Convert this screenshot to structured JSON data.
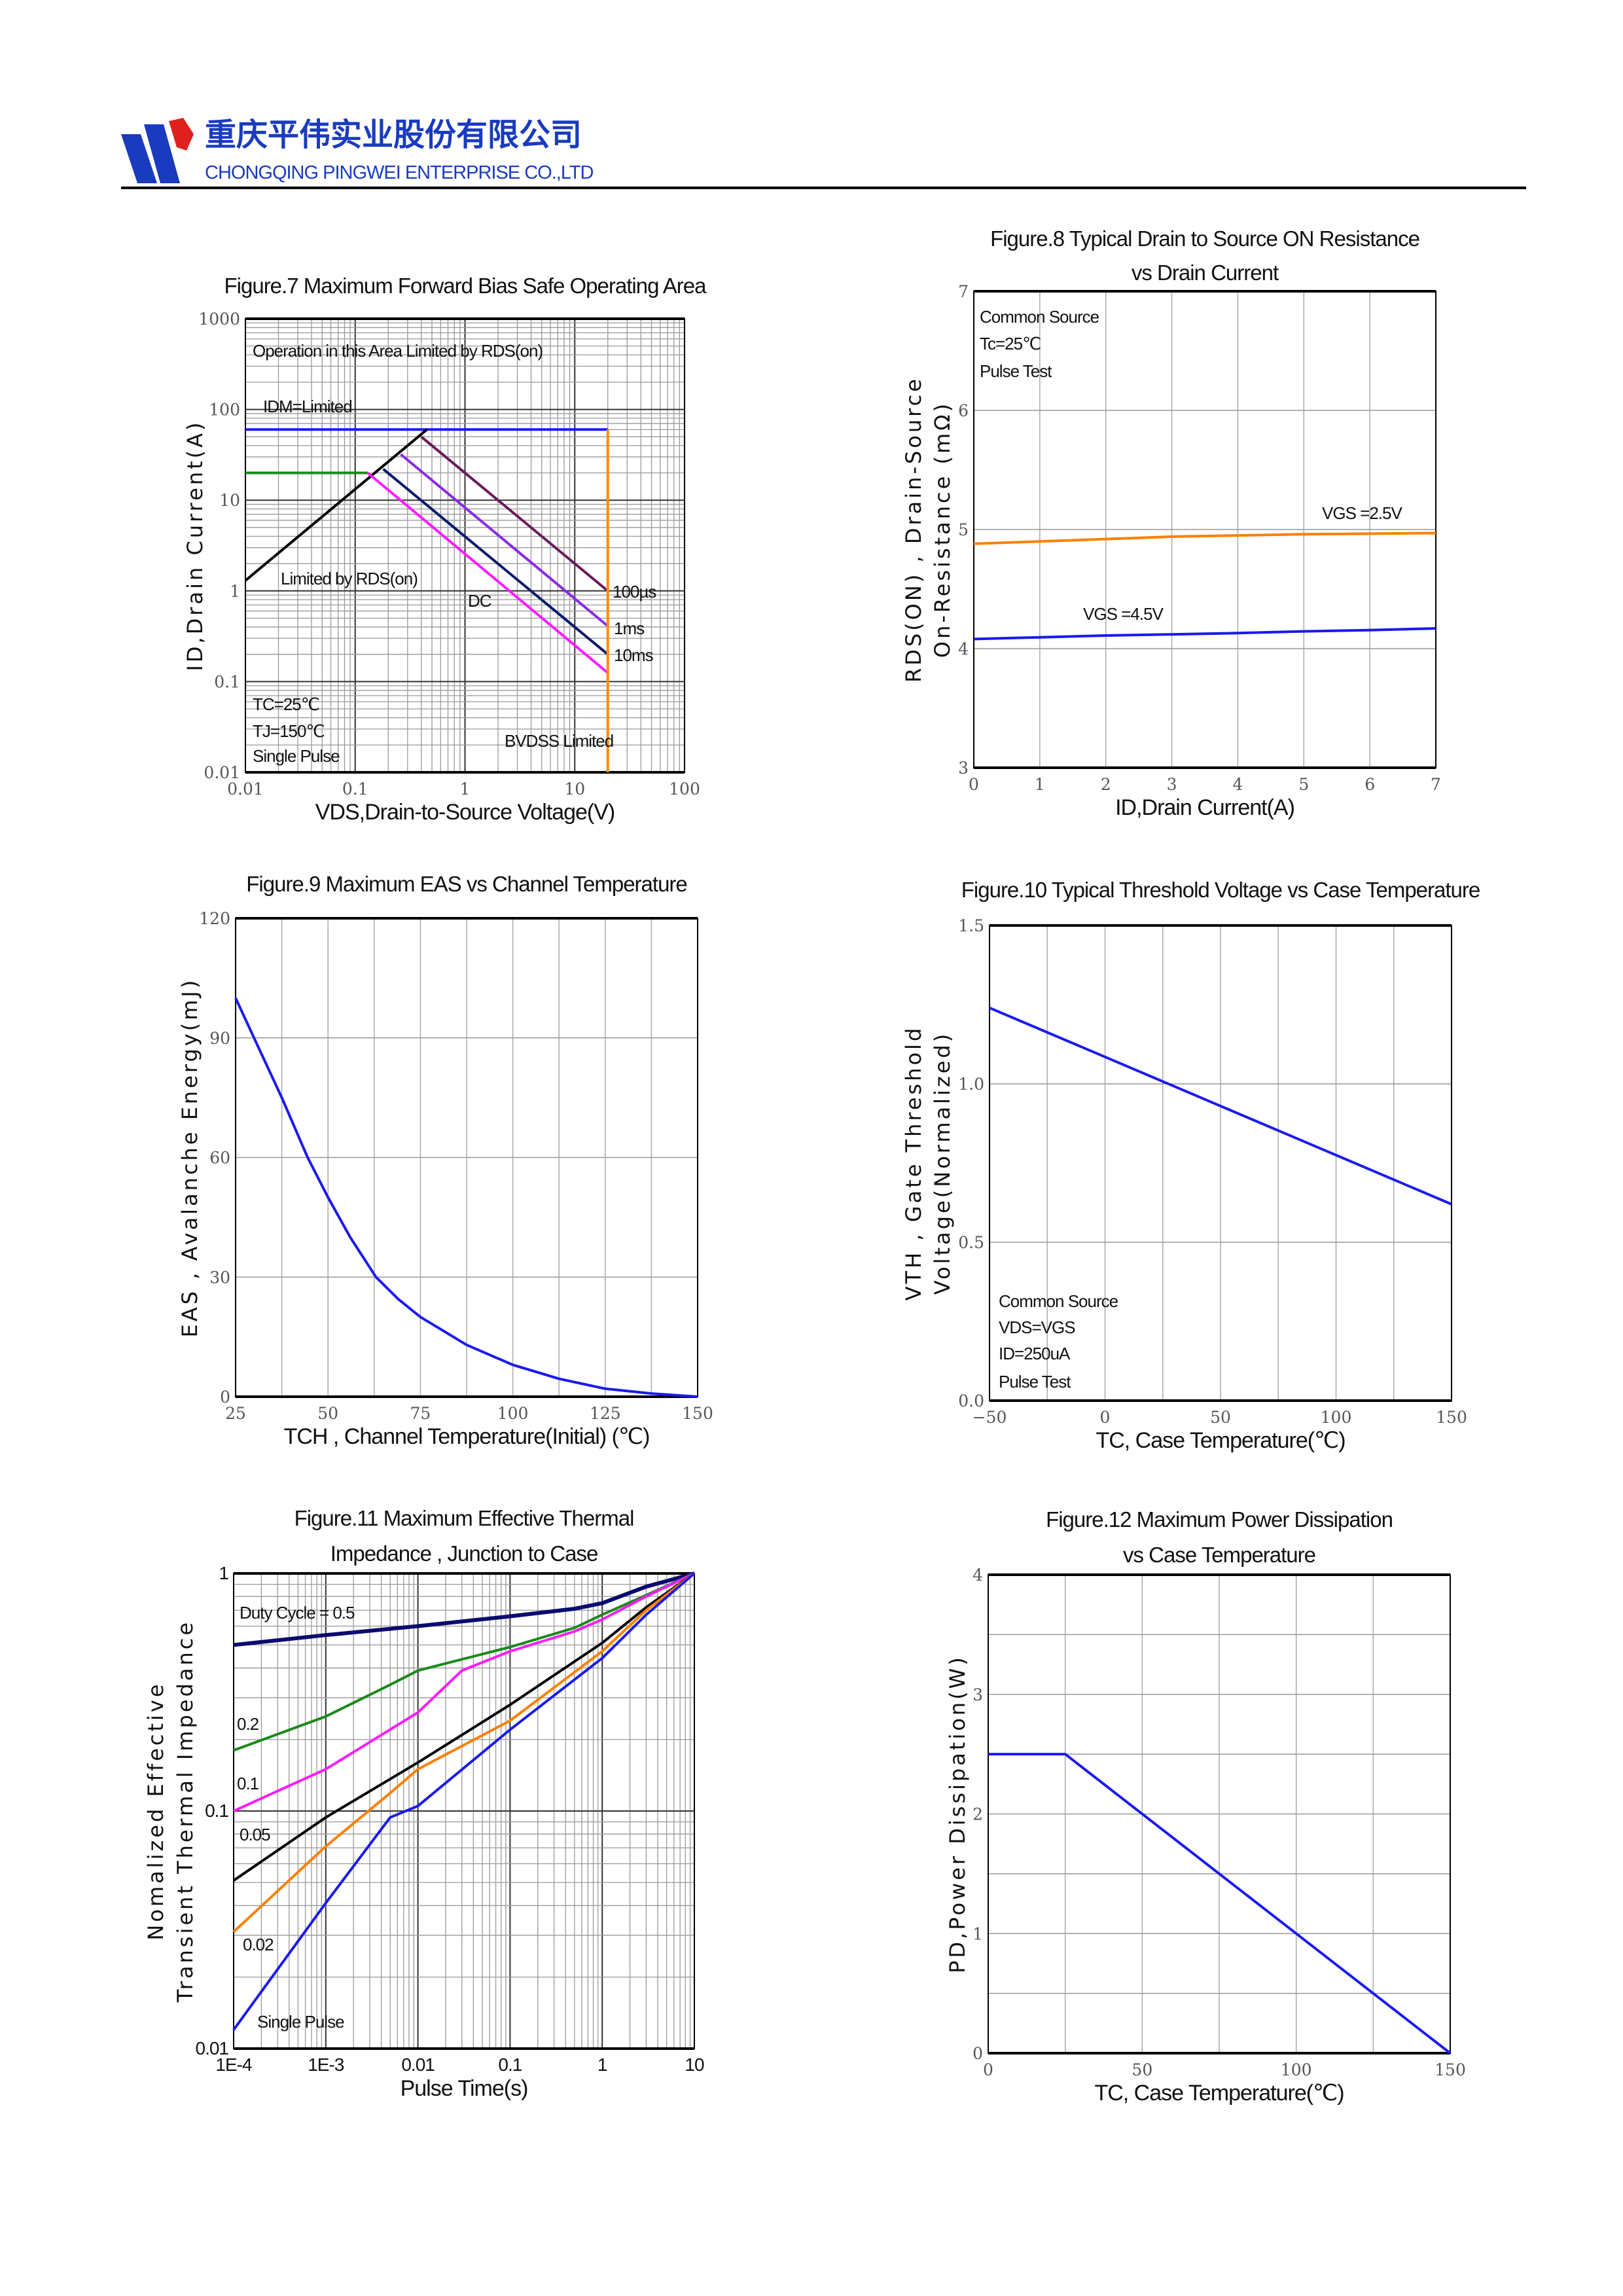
{
  "header": {
    "company_cn": "重庆平伟实业股份有限公司",
    "company_en": "CHONGQING PINGWEI ENTERPRISE CO.,LTD",
    "brand_color": "#1a3bbf",
    "logo_accent": "#e0201c"
  },
  "chart_data": [
    {
      "type": "line",
      "title": [
        "Figure.7 Maximum Forward Bias Safe Operating Area"
      ],
      "xlabel": "VDS,Drain-to-Source Voltage(V)",
      "ylabel": [
        "ID,Drain Current(A)"
      ],
      "xscale": "log",
      "yscale": "log",
      "xlim": [
        0.01,
        100
      ],
      "ylim": [
        0.01,
        1000
      ],
      "xticks": [
        0.01,
        0.1,
        1,
        10,
        100
      ],
      "xticklabels": [
        "0.01",
        "0.1",
        "1",
        "10",
        "100"
      ],
      "yticks": [
        0.01,
        0.1,
        1,
        10,
        100,
        1000
      ],
      "yticklabels": [
        "0.01",
        "0.1",
        "1",
        "10",
        "100",
        "1000"
      ],
      "grid": true,
      "series": [
        {
          "color": "#1a1aff",
          "x": [
            0.01,
            20
          ],
          "y": [
            60,
            60
          ]
        },
        {
          "color": "#1a8a1a",
          "x": [
            0.01,
            0.13
          ],
          "y": [
            20,
            20
          ]
        },
        {
          "color": "#000000",
          "x": [
            0.01,
            0.45
          ],
          "y": [
            1.3,
            60
          ]
        },
        {
          "color": "#6a1a5a",
          "x": [
            0.4,
            20
          ],
          "y": [
            50,
            1
          ]
        },
        {
          "color": "#8a2be2",
          "x": [
            0.26,
            20
          ],
          "y": [
            32,
            0.41
          ]
        },
        {
          "color": "#0a1a6a",
          "x": [
            0.18,
            20
          ],
          "y": [
            22,
            0.2
          ]
        },
        {
          "color": "#ff1aff",
          "x": [
            0.13,
            20
          ],
          "y": [
            20,
            0.125
          ]
        },
        {
          "color": "#ff8c00",
          "x": [
            20,
            20
          ],
          "y": [
            0.01,
            60
          ]
        }
      ],
      "annotations": [
        "Operation in this Area Limited by RDS(on)",
        "IDM=Limited",
        "Limited by RDS(on)",
        "DC",
        "100µs",
        "1ms",
        "10ms",
        "TC=25℃",
        "TJ=150℃",
        "Single Pulse",
        "BVDSS Limited"
      ]
    },
    {
      "type": "line",
      "title": [
        "Figure.8 Typical Drain to Source ON Resistance",
        "vs Drain Current"
      ],
      "xlabel": "ID,Drain Current(A)",
      "ylabel": [
        "RDS(ON) , Drain-Source",
        "On-Resistance (mΩ)"
      ],
      "xscale": "linear",
      "yscale": "linear",
      "xlim": [
        0,
        7
      ],
      "ylim": [
        3,
        7
      ],
      "xticks": [
        0,
        1,
        2,
        3,
        4,
        5,
        6,
        7
      ],
      "xticklabels": [
        "0",
        "1",
        "2",
        "3",
        "4",
        "5",
        "6",
        "7"
      ],
      "yticks": [
        3,
        4,
        5,
        6,
        7
      ],
      "yticklabels": [
        "3",
        "4",
        "5",
        "6",
        "7"
      ],
      "xgrid": [
        1,
        2,
        3,
        4,
        5,
        6
      ],
      "ygrid": [
        4,
        5,
        6
      ],
      "series": [
        {
          "color": "#ff8000",
          "x": [
            0,
            1,
            2,
            3,
            4,
            5,
            6,
            7
          ],
          "y": [
            4.88,
            4.9,
            4.92,
            4.94,
            4.95,
            4.96,
            4.965,
            4.97
          ]
        },
        {
          "color": "#1a1aee",
          "x": [
            0,
            1,
            2,
            3,
            4,
            5,
            6,
            7
          ],
          "y": [
            4.08,
            4.095,
            4.11,
            4.12,
            4.13,
            4.145,
            4.155,
            4.17
          ]
        }
      ],
      "annotations": [
        "Common Source",
        "Tc=25℃",
        "Pulse Test",
        "VGS =2.5V",
        "VGS =4.5V"
      ]
    },
    {
      "type": "line",
      "title": [
        "Figure.9 Maximum EAS vs Channel Temperature"
      ],
      "xlabel": "TCH , Channel Temperature(Initial) (℃)",
      "ylabel": [
        "EAS , Avalanche Energy(mJ)"
      ],
      "xscale": "linear",
      "yscale": "linear",
      "xlim": [
        25,
        150
      ],
      "ylim": [
        0,
        120
      ],
      "xticks": [
        25,
        50,
        75,
        100,
        125,
        150
      ],
      "xticklabels": [
        "25",
        "50",
        "75",
        "100",
        "125",
        "150"
      ],
      "yticks": [
        0,
        30,
        60,
        90,
        120
      ],
      "yticklabels": [
        "0",
        "30",
        "60",
        "90",
        "120"
      ],
      "xgrid": [
        37.5,
        50,
        62.5,
        75,
        87.5,
        100,
        112.5,
        125,
        137.5
      ],
      "ygrid": [
        30,
        60,
        90
      ],
      "series": [
        {
          "color": "#1a1aee",
          "x": [
            25,
            30,
            37.5,
            44.5,
            50,
            56,
            63,
            69,
            75,
            87.5,
            100,
            112.5,
            125,
            137.5,
            150
          ],
          "y": [
            100,
            90,
            75,
            60,
            50,
            40,
            30,
            24.5,
            20,
            13,
            8,
            4.5,
            2,
            0.8,
            0
          ]
        }
      ],
      "annotations": []
    },
    {
      "type": "line",
      "title": [
        "Figure.10 Typical Threshold Voltage vs Case Temperature"
      ],
      "xlabel": "TC, Case Temperature(℃)",
      "ylabel": [
        "VTH , Gate Threshold",
        "Voltage(Normalized)"
      ],
      "xscale": "linear",
      "yscale": "linear",
      "xlim": [
        -50,
        150
      ],
      "ylim": [
        0,
        1.5
      ],
      "xticks": [
        -50,
        0,
        50,
        100,
        150
      ],
      "xticklabels": [
        "−50",
        "0",
        "50",
        "100",
        "150"
      ],
      "yticks": [
        0,
        0.5,
        1.0,
        1.5
      ],
      "yticklabels": [
        "0.0",
        "0.5",
        "1.0",
        "1.5"
      ],
      "xgrid": [
        -25,
        0,
        25,
        50,
        75,
        100,
        125
      ],
      "ygrid": [
        0.5,
        1.0
      ],
      "series": [
        {
          "color": "#1a1aee",
          "x": [
            -50,
            150
          ],
          "y": [
            1.24,
            0.62
          ]
        }
      ],
      "annotations": [
        "Common Source",
        "VDS=VGS",
        "ID=250uA",
        "Pulse Test"
      ]
    },
    {
      "type": "line",
      "title": [
        "Figure.11 Maximum Effective Thermal",
        "Impedance , Junction to Case"
      ],
      "xlabel": "Pulse Time(s)",
      "ylabel": [
        "Nomalized Effective",
        "Transient Thermal Impedance"
      ],
      "xscale": "log",
      "yscale": "log",
      "xlim": [
        0.0001,
        10
      ],
      "ylim": [
        0.01,
        1
      ],
      "xticks": [
        0.0001,
        0.001,
        0.01,
        0.1,
        1,
        10
      ],
      "xticklabels": [
        "1E-4",
        "1E-3",
        "0.01",
        "0.1",
        "1",
        "10"
      ],
      "yticks": [
        0.01,
        0.1,
        1
      ],
      "yticklabels": [
        "0.01",
        "0.1",
        "1"
      ],
      "grid": true,
      "series": [
        {
          "color": "#0a0a70",
          "x": [
            0.0001,
            0.001,
            0.01,
            0.1,
            0.5,
            1,
            3,
            10
          ],
          "y": [
            0.5,
            0.55,
            0.6,
            0.66,
            0.71,
            0.75,
            0.88,
            1
          ]
        },
        {
          "color": "#1a8a1a",
          "x": [
            0.0001,
            0.001,
            0.005,
            0.01,
            0.1,
            0.5,
            1,
            3,
            10
          ],
          "y": [
            0.18,
            0.25,
            0.34,
            0.39,
            0.49,
            0.59,
            0.67,
            0.81,
            1
          ]
        },
        {
          "color": "#ff1aff",
          "x": [
            0.0001,
            0.001,
            0.01,
            0.03,
            0.1,
            0.5,
            1,
            3,
            10
          ],
          "y": [
            0.1,
            0.15,
            0.26,
            0.39,
            0.47,
            0.57,
            0.64,
            0.8,
            1
          ]
        },
        {
          "color": "#000000",
          "x": [
            0.0001,
            0.001,
            0.01,
            0.1,
            1,
            3,
            10
          ],
          "y": [
            0.051,
            0.094,
            0.16,
            0.28,
            0.51,
            0.72,
            1
          ]
        },
        {
          "color": "#ff8000",
          "x": [
            0.0001,
            0.001,
            0.005,
            0.01,
            0.1,
            1,
            3,
            10
          ],
          "y": [
            0.031,
            0.071,
            0.119,
            0.15,
            0.24,
            0.47,
            0.7,
            1
          ]
        },
        {
          "color": "#1a1aee",
          "x": [
            0.0001,
            0.001,
            0.005,
            0.01,
            0.1,
            1,
            3,
            10
          ],
          "y": [
            0.012,
            0.041,
            0.094,
            0.105,
            0.22,
            0.44,
            0.67,
            1
          ]
        }
      ],
      "annotations": [
        "Duty Cycle = 0.5",
        "0.2",
        "0.1",
        "0.05",
        "0.02",
        "Single Pulse"
      ]
    },
    {
      "type": "line",
      "title": [
        "Figure.12 Maximum Power Dissipation",
        "vs Case Temperature"
      ],
      "xlabel": "TC, Case Temperature(℃)",
      "ylabel": [
        "PD,Power Dissipation(W)"
      ],
      "xscale": "linear",
      "yscale": "linear",
      "xlim": [
        0,
        150
      ],
      "ylim": [
        0,
        4
      ],
      "xticks": [
        0,
        50,
        100,
        150
      ],
      "xticklabels": [
        "0",
        "50",
        "100",
        "150"
      ],
      "yticks": [
        0,
        1,
        2,
        3,
        4
      ],
      "yticklabels": [
        "0",
        "1",
        "2",
        "3",
        "4"
      ],
      "xgrid": [
        25,
        50,
        75,
        100,
        125
      ],
      "ygrid": [
        0.5,
        1,
        1.5,
        2,
        2.5,
        3,
        3.5
      ],
      "series": [
        {
          "color": "#1a1aee",
          "x": [
            0,
            25,
            150
          ],
          "y": [
            2.5,
            2.5,
            0
          ]
        }
      ],
      "annotations": []
    }
  ]
}
